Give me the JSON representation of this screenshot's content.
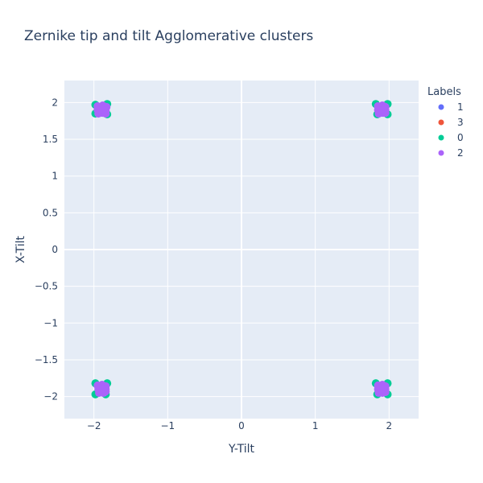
{
  "chart_data": {
    "type": "scatter",
    "title": "Zernike tip and tilt Agglomerative clusters",
    "xlabel": "Y-Tilt",
    "ylabel": "X-Tilt",
    "xlim": [
      -2.4,
      2.4
    ],
    "ylim": [
      -2.3,
      2.3
    ],
    "x_ticks": [
      -2,
      -1,
      0,
      1,
      2
    ],
    "x_tick_labels": [
      "−2",
      "−1",
      "0",
      "1",
      "2"
    ],
    "y_ticks": [
      2,
      1.5,
      1,
      0.5,
      0,
      -0.5,
      -1,
      -1.5,
      -2
    ],
    "y_tick_labels": [
      "2",
      "1.5",
      "1",
      "0.5",
      "0",
      "−0.5",
      "−1",
      "−1.5",
      "−2"
    ],
    "grid": true,
    "legend_title": "Labels",
    "legend_position": "top-right",
    "series": [
      {
        "name": "1",
        "color": "#636efa",
        "points": [
          [
            -1.92,
            1.9
          ],
          [
            -1.88,
            1.95
          ],
          [
            1.9,
            1.92
          ],
          [
            1.94,
            1.88
          ],
          [
            -1.9,
            -1.88
          ],
          [
            -1.86,
            -1.92
          ],
          [
            1.9,
            -1.9
          ],
          [
            1.88,
            -1.86
          ]
        ]
      },
      {
        "name": "3",
        "color": "#ef553b",
        "points": [
          [
            -1.87,
            1.88
          ],
          [
            1.92,
            1.9
          ],
          [
            -1.9,
            -1.9
          ],
          [
            1.91,
            -1.89
          ]
        ]
      },
      {
        "name": "0",
        "color": "#00cc96",
        "points": [
          [
            -1.98,
            1.97
          ],
          [
            -1.98,
            1.85
          ],
          [
            -1.82,
            1.98
          ],
          [
            -1.82,
            1.84
          ],
          [
            1.82,
            1.98
          ],
          [
            1.98,
            1.98
          ],
          [
            1.98,
            1.84
          ],
          [
            1.84,
            1.84
          ],
          [
            -1.98,
            -1.82
          ],
          [
            -1.98,
            -1.97
          ],
          [
            -1.82,
            -1.82
          ],
          [
            -1.84,
            -1.97
          ],
          [
            1.82,
            -1.82
          ],
          [
            1.98,
            -1.82
          ],
          [
            1.98,
            -1.97
          ],
          [
            1.84,
            -1.97
          ]
        ]
      },
      {
        "name": "2",
        "color": "#ab63fa",
        "points": [
          [
            -1.95,
            1.95
          ],
          [
            -1.88,
            1.96
          ],
          [
            -1.83,
            1.94
          ],
          [
            -1.95,
            1.9
          ],
          [
            -1.9,
            1.9
          ],
          [
            -1.84,
            1.89
          ],
          [
            -1.94,
            1.85
          ],
          [
            -1.88,
            1.86
          ],
          [
            -1.84,
            1.85
          ],
          [
            1.85,
            1.95
          ],
          [
            1.91,
            1.96
          ],
          [
            1.95,
            1.94
          ],
          [
            1.85,
            1.9
          ],
          [
            1.9,
            1.89
          ],
          [
            1.95,
            1.9
          ],
          [
            1.86,
            1.85
          ],
          [
            1.92,
            1.86
          ],
          [
            1.95,
            1.86
          ],
          [
            -1.95,
            -1.85
          ],
          [
            -1.89,
            -1.84
          ],
          [
            -1.84,
            -1.86
          ],
          [
            -1.94,
            -1.9
          ],
          [
            -1.88,
            -1.91
          ],
          [
            -1.84,
            -1.9
          ],
          [
            -1.93,
            -1.95
          ],
          [
            -1.87,
            -1.95
          ],
          [
            -1.84,
            -1.93
          ],
          [
            1.85,
            -1.85
          ],
          [
            1.91,
            -1.84
          ],
          [
            1.95,
            -1.86
          ],
          [
            1.85,
            -1.9
          ],
          [
            1.9,
            -1.91
          ],
          [
            1.95,
            -1.9
          ],
          [
            1.86,
            -1.95
          ],
          [
            1.91,
            -1.95
          ],
          [
            1.95,
            -1.94
          ]
        ]
      }
    ]
  }
}
